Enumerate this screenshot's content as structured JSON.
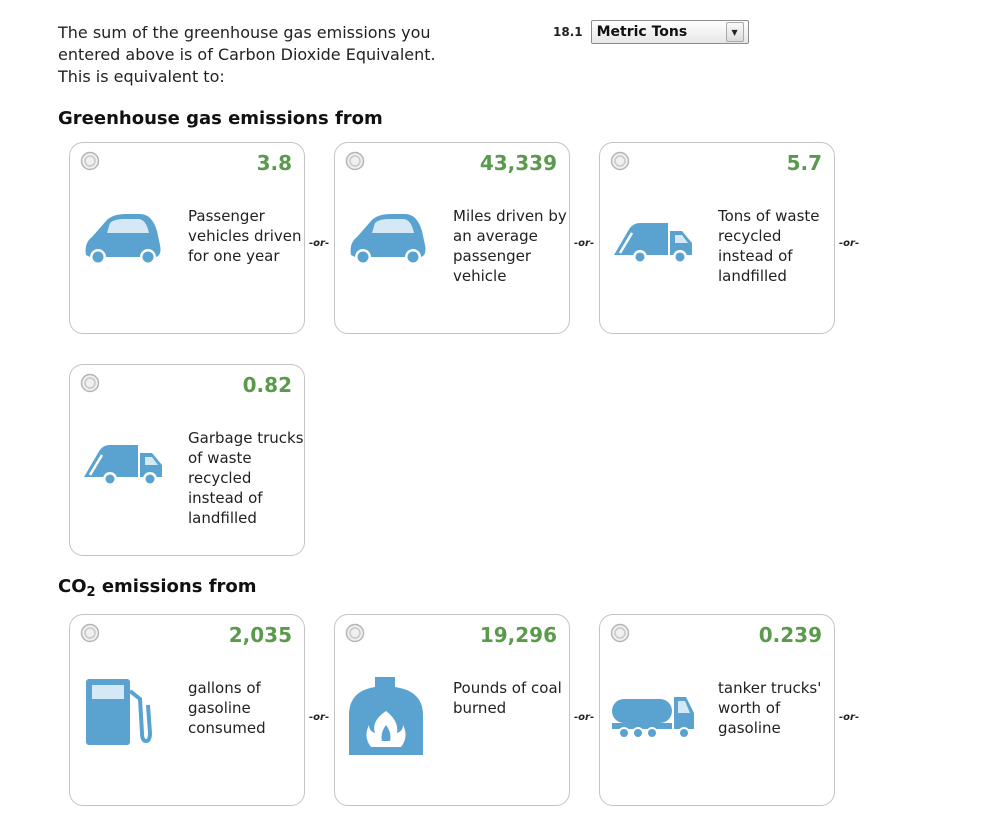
{
  "intro_text": "The sum of the greenhouse gas emissions you entered above is of Carbon Dioxide Equivalent. This is equivalent to:",
  "amount": "18.1",
  "unit_select": {
    "selected": "Metric Tons"
  },
  "sections": {
    "ghg": {
      "heading": "Greenhouse gas emissions from",
      "cards": [
        {
          "value": "3.8",
          "description": "Passenger vehicles driven for one year",
          "icon": "car-icon"
        },
        {
          "value": "43,339",
          "description": "Miles driven by an average passenger vehicle",
          "icon": "car-icon"
        },
        {
          "value": "5.7",
          "description": "Tons of waste recycled instead of landfilled",
          "icon": "garbage-truck-icon"
        },
        {
          "value": "0.82",
          "description": "Garbage trucks of waste recycled instead of landfilled",
          "icon": "garbage-truck-icon"
        }
      ]
    },
    "co2": {
      "heading_prefix": "CO",
      "heading_subscript": "2",
      "heading_suffix": " emissions from",
      "cards": [
        {
          "value": "2,035",
          "description": "gallons of gasoline consumed",
          "icon": "gas-pump-icon"
        },
        {
          "value": "19,296",
          "description": "Pounds of coal burned",
          "icon": "coal-furnace-icon"
        },
        {
          "value": "0.239",
          "description": "tanker trucks' worth of gasoline",
          "icon": "tanker-truck-icon"
        }
      ]
    }
  },
  "or_label": "-or-",
  "colors": {
    "value_green": "#5a9a4c",
    "icon_blue": "#5aa3d1",
    "card_border": "#c4c4c4"
  }
}
